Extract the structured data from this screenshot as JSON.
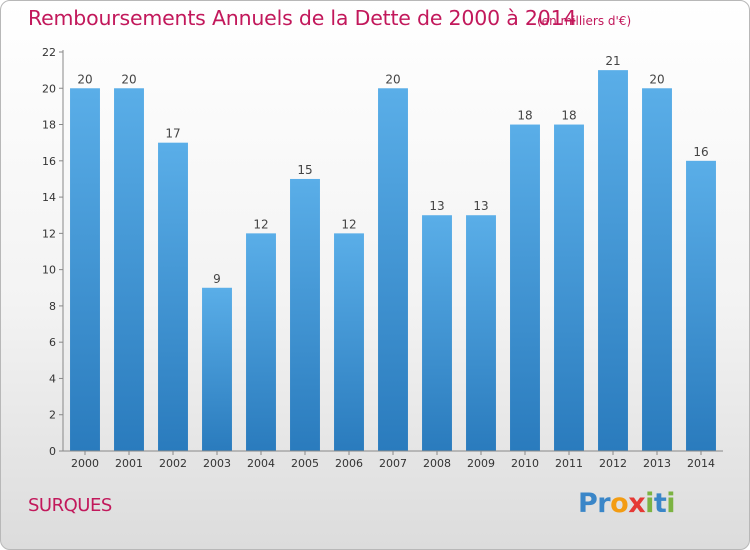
{
  "title": "Remboursements Annuels de la Dette de 2000 à 2014",
  "subtitle": "(en milliers d'€)",
  "town": "SURQUES",
  "brand": {
    "text": "Proxiti",
    "letters": [
      "P",
      "r",
      "o",
      "x",
      "i",
      "t",
      "i"
    ],
    "colors": [
      "#3a86c8",
      "#3a86c8",
      "#f39c12",
      "#e53935",
      "#7cb342",
      "#3a86c8",
      "#7cb342"
    ]
  },
  "colors": {
    "title": "#c2185b",
    "bar_top": "#5aaee8",
    "bar_bottom": "#2a7bbd",
    "axis": "#888888"
  },
  "chart_data": {
    "type": "bar",
    "title": "Remboursements Annuels de la Dette de 2000 à 2014",
    "subtitle": "(en milliers d'€)",
    "categories": [
      "2000",
      "2001",
      "2002",
      "2003",
      "2004",
      "2005",
      "2006",
      "2007",
      "2008",
      "2009",
      "2010",
      "2011",
      "2012",
      "2013",
      "2014"
    ],
    "values": [
      20,
      20,
      17,
      9,
      12,
      15,
      12,
      20,
      13,
      13,
      18,
      18,
      21,
      20,
      16
    ],
    "ylim": [
      0,
      22
    ],
    "yticks": [
      0,
      2,
      4,
      6,
      8,
      10,
      12,
      14,
      16,
      18,
      20,
      22
    ],
    "xlabel": "",
    "ylabel": "",
    "grid": false,
    "data_labels": true
  }
}
